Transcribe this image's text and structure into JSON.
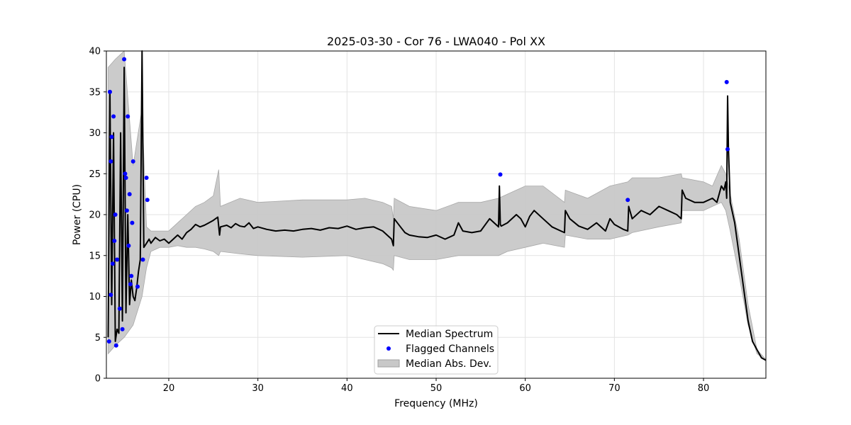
{
  "chart_data": {
    "type": "line",
    "title": "2025-03-30 - Cor 76 - LWA040 - Pol XX",
    "xlabel": "Frequency (MHz)",
    "ylabel": "Power (CPU)",
    "xlim": [
      13.0,
      87.0
    ],
    "ylim": [
      0,
      40
    ],
    "xticks": [
      20,
      30,
      40,
      50,
      60,
      70,
      80
    ],
    "yticks": [
      0,
      5,
      10,
      15,
      20,
      25,
      30,
      35,
      40
    ],
    "grid": true,
    "legend_position": "lower-center",
    "legend": [
      "Median Spectrum",
      "Flagged Channels",
      "Median Abs. Dev."
    ],
    "series": [
      {
        "name": "Median Spectrum",
        "kind": "line",
        "color": "#000000",
        "x": [
          13.2,
          13.4,
          13.6,
          13.8,
          14.0,
          14.2,
          14.4,
          14.6,
          14.8,
          15.0,
          15.2,
          15.4,
          15.6,
          15.8,
          16.0,
          16.2,
          16.4,
          16.6,
          16.8,
          17.0,
          17.2,
          17.5,
          17.8,
          18.0,
          18.5,
          19.0,
          19.5,
          20.0,
          20.5,
          21.0,
          21.5,
          22.0,
          22.5,
          23.0,
          23.5,
          24.0,
          24.5,
          25.0,
          25.5,
          25.7,
          25.8,
          26.5,
          27.0,
          27.5,
          28.0,
          28.5,
          29.0,
          29.5,
          30.0,
          31.0,
          32.0,
          33.0,
          34.0,
          35.0,
          36.0,
          37.0,
          38.0,
          39.0,
          40.0,
          41.0,
          42.0,
          43.0,
          44.0,
          45.0,
          45.2,
          45.3,
          46.0,
          46.5,
          47.0,
          48.0,
          49.0,
          50.0,
          51.0,
          52.0,
          52.5,
          53.0,
          54.0,
          55.0,
          56.0,
          57.0,
          57.1,
          57.2,
          57.3,
          58.0,
          59.0,
          59.5,
          60.0,
          60.5,
          61.0,
          62.0,
          63.0,
          64.0,
          64.4,
          64.5,
          65.0,
          66.0,
          67.0,
          68.0,
          69.0,
          69.5,
          70.0,
          71.0,
          71.5,
          71.6,
          72.0,
          73.0,
          74.0,
          75.0,
          76.0,
          77.0,
          77.5,
          77.6,
          78.0,
          79.0,
          80.0,
          81.0,
          81.5,
          82.0,
          82.3,
          82.5,
          82.6,
          82.7,
          82.8,
          83.0,
          83.5,
          84.0,
          84.5,
          85.0,
          85.5,
          86.0,
          86.5,
          87.0
        ],
        "y": [
          5.0,
          35.0,
          9.0,
          30.0,
          4.5,
          6.0,
          5.5,
          30.0,
          7.0,
          38.0,
          8.0,
          20.0,
          9.0,
          12.0,
          10.0,
          9.5,
          11.0,
          13.0,
          14.5,
          40.0,
          16.0,
          16.5,
          17.0,
          16.5,
          17.2,
          16.8,
          17.0,
          16.5,
          17.0,
          17.5,
          17.0,
          17.8,
          18.2,
          18.8,
          18.5,
          18.7,
          19.0,
          19.3,
          19.7,
          17.5,
          18.5,
          18.7,
          18.4,
          18.9,
          18.6,
          18.5,
          19.0,
          18.3,
          18.5,
          18.2,
          18.0,
          18.1,
          18.0,
          18.2,
          18.3,
          18.1,
          18.4,
          18.3,
          18.6,
          18.2,
          18.4,
          18.5,
          18.0,
          17.0,
          16.2,
          19.5,
          18.5,
          17.8,
          17.5,
          17.3,
          17.2,
          17.5,
          17.0,
          17.5,
          19.0,
          18.0,
          17.8,
          18.0,
          19.5,
          18.5,
          23.5,
          18.8,
          18.6,
          19.0,
          20.0,
          19.5,
          18.5,
          19.8,
          20.5,
          19.5,
          18.5,
          18.0,
          17.8,
          20.5,
          19.5,
          18.6,
          18.2,
          19.0,
          18.0,
          19.5,
          18.8,
          18.2,
          18.0,
          21.0,
          19.5,
          20.5,
          20.0,
          21.0,
          20.5,
          20.0,
          19.5,
          23.0,
          22.0,
          21.5,
          21.5,
          22.0,
          21.5,
          23.5,
          23.0,
          24.0,
          22.0,
          34.5,
          28.0,
          21.5,
          19.0,
          15.0,
          11.0,
          7.0,
          4.5,
          3.5,
          2.5,
          2.2
        ]
      },
      {
        "name": "Flagged Channels",
        "kind": "scatter",
        "color": "#0000ff",
        "x": [
          13.3,
          13.4,
          13.5,
          13.6,
          13.7,
          13.8,
          14.0,
          14.2,
          14.5,
          14.8,
          15.0,
          15.1,
          15.2,
          15.3,
          15.4,
          15.5,
          15.6,
          15.7,
          15.8,
          16.0,
          16.5,
          17.1,
          17.5,
          17.6,
          57.2,
          71.5,
          82.6,
          82.7,
          13.5,
          14.1,
          15.9,
          13.9
        ],
        "y": [
          4.5,
          35.0,
          26.5,
          29.5,
          14.0,
          32.0,
          20.0,
          14.5,
          8.5,
          6.0,
          39.0,
          25.0,
          24.5,
          20.5,
          32.0,
          16.2,
          22.5,
          11.5,
          12.5,
          26.5,
          11.2,
          14.5,
          24.5,
          21.8,
          24.9,
          21.8,
          36.2,
          28.0,
          10.2,
          4.0,
          19.0,
          16.8
        ]
      },
      {
        "name": "Median Abs. Dev.",
        "kind": "band",
        "color": "#c8c8c8",
        "x": [
          13.2,
          14.0,
          15.0,
          16.0,
          17.0,
          17.5,
          18.0,
          19.0,
          20.0,
          21.0,
          22.0,
          23.0,
          24.0,
          25.0,
          25.6,
          25.8,
          28.0,
          30.0,
          35.0,
          40.0,
          42.0,
          44.0,
          45.0,
          45.2,
          45.3,
          47.0,
          50.0,
          52.5,
          55.0,
          57.0,
          58.0,
          60.0,
          62.0,
          64.4,
          64.5,
          67.0,
          69.5,
          71.5,
          72.0,
          75.0,
          77.5,
          77.6,
          80.0,
          81.0,
          82.0,
          82.5,
          83.0,
          84.0,
          85.0,
          86.0,
          87.0
        ],
        "lower": [
          3.0,
          4.0,
          5.0,
          6.5,
          10.0,
          13.5,
          15.5,
          16.0,
          16.0,
          16.2,
          16.0,
          16.0,
          15.8,
          15.5,
          15.0,
          15.5,
          15.2,
          15.0,
          14.8,
          15.0,
          14.5,
          14.0,
          13.5,
          13.2,
          15.0,
          14.5,
          14.5,
          15.0,
          15.0,
          15.0,
          15.5,
          16.0,
          16.5,
          16.0,
          17.5,
          17.0,
          17.0,
          17.5,
          17.8,
          18.5,
          19.0,
          20.5,
          20.5,
          21.0,
          21.5,
          20.5,
          18.0,
          12.5,
          6.5,
          3.0,
          2.2
        ],
        "upper": [
          38.0,
          39.0,
          40.0,
          26.0,
          33.0,
          18.5,
          18.0,
          18.0,
          18.0,
          19.0,
          20.0,
          21.0,
          21.5,
          22.3,
          25.5,
          21.0,
          22.0,
          21.5,
          21.8,
          21.8,
          22.0,
          21.5,
          21.0,
          19.5,
          22.0,
          21.0,
          20.5,
          21.5,
          21.5,
          22.0,
          22.5,
          23.5,
          23.5,
          21.5,
          23.0,
          22.0,
          23.5,
          24.0,
          24.5,
          24.5,
          25.0,
          24.5,
          24.0,
          23.5,
          26.0,
          25.0,
          22.5,
          17.0,
          9.0,
          3.5,
          2.3
        ]
      }
    ]
  }
}
